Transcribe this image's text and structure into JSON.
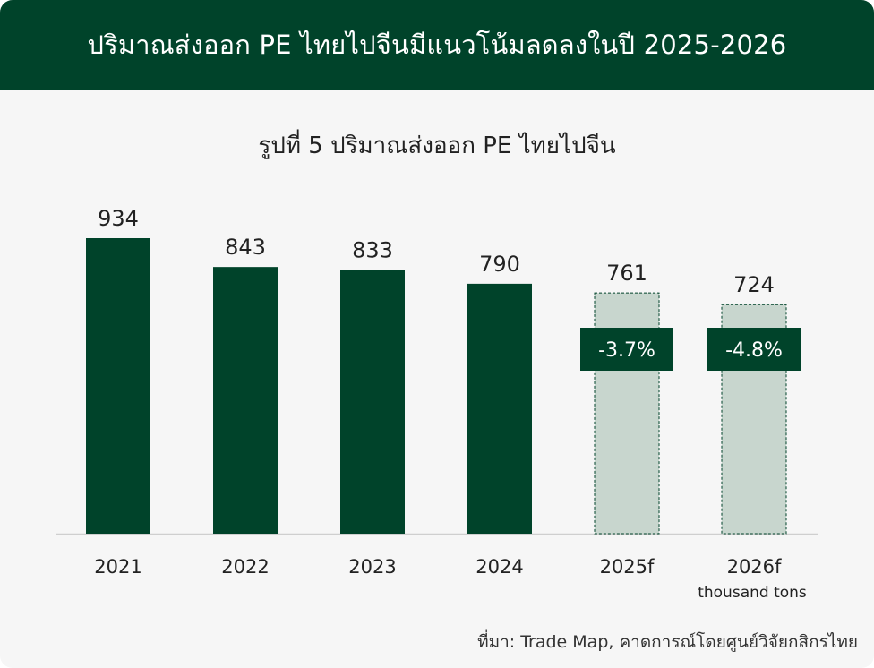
{
  "header": {
    "title": "ปริมาณส่งออก PE ไทยไปจีนมีแนวโน้มลดลงในปี 2025-2026"
  },
  "source": "ที่มา: Trade Map, คาดการณ์โดยศูนย์วิจัยกสิกรไทย",
  "colors": {
    "actual": "#00432a",
    "forecast": "#c8d6ce",
    "header": "#00432a"
  },
  "chart_data": {
    "type": "bar",
    "title": "รูปที่ 5 ปริมาณส่งออก PE ไทยไปจีน",
    "unit": "thousand tons",
    "categories": [
      "2021",
      "2022",
      "2023",
      "2024",
      "2025f",
      "2026f"
    ],
    "values": [
      934,
      843,
      833,
      790,
      761,
      724
    ],
    "forecast": [
      false,
      false,
      false,
      false,
      true,
      true
    ],
    "growth_labels": [
      null,
      null,
      null,
      null,
      "-3.7%",
      "-4.8%"
    ],
    "ylim": [
      0,
      1000
    ],
    "grid": false,
    "legend": "none"
  }
}
